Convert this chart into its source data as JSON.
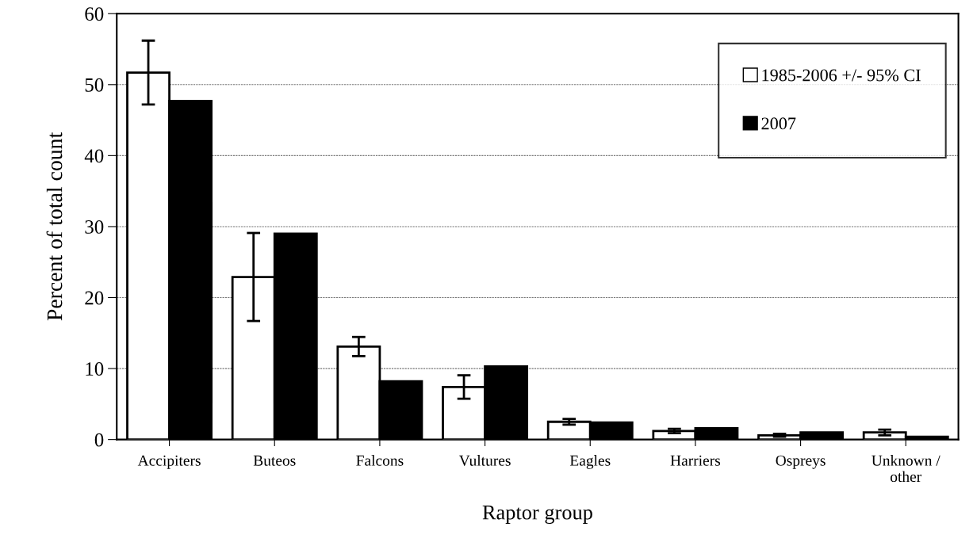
{
  "chart_data": {
    "type": "bar",
    "xlabel": "Raptor group",
    "ylabel": "Percent of total count",
    "categories": [
      "Accipiters",
      "Buteos",
      "Falcons",
      "Vultures",
      "Eagles",
      "Harriers",
      "Ospreys",
      "Unknown /\nother"
    ],
    "series": [
      {
        "name": "1985-2006 +/- 95% CI",
        "color": "#ffffff",
        "values": [
          51.7,
          22.9,
          13.1,
          7.4,
          2.5,
          1.2,
          0.6,
          1.0
        ],
        "errors": [
          4.5,
          6.2,
          1.35,
          1.65,
          0.4,
          0.3,
          0.2,
          0.4
        ]
      },
      {
        "name": "2007",
        "color": "#000000",
        "values": [
          47.7,
          29.0,
          8.2,
          10.3,
          2.4,
          1.6,
          1.0,
          0.4
        ]
      }
    ],
    "ylim": [
      0,
      60
    ],
    "yticks": [
      0,
      10,
      20,
      30,
      40,
      50,
      60
    ],
    "grid": "y",
    "legend": "top right"
  }
}
